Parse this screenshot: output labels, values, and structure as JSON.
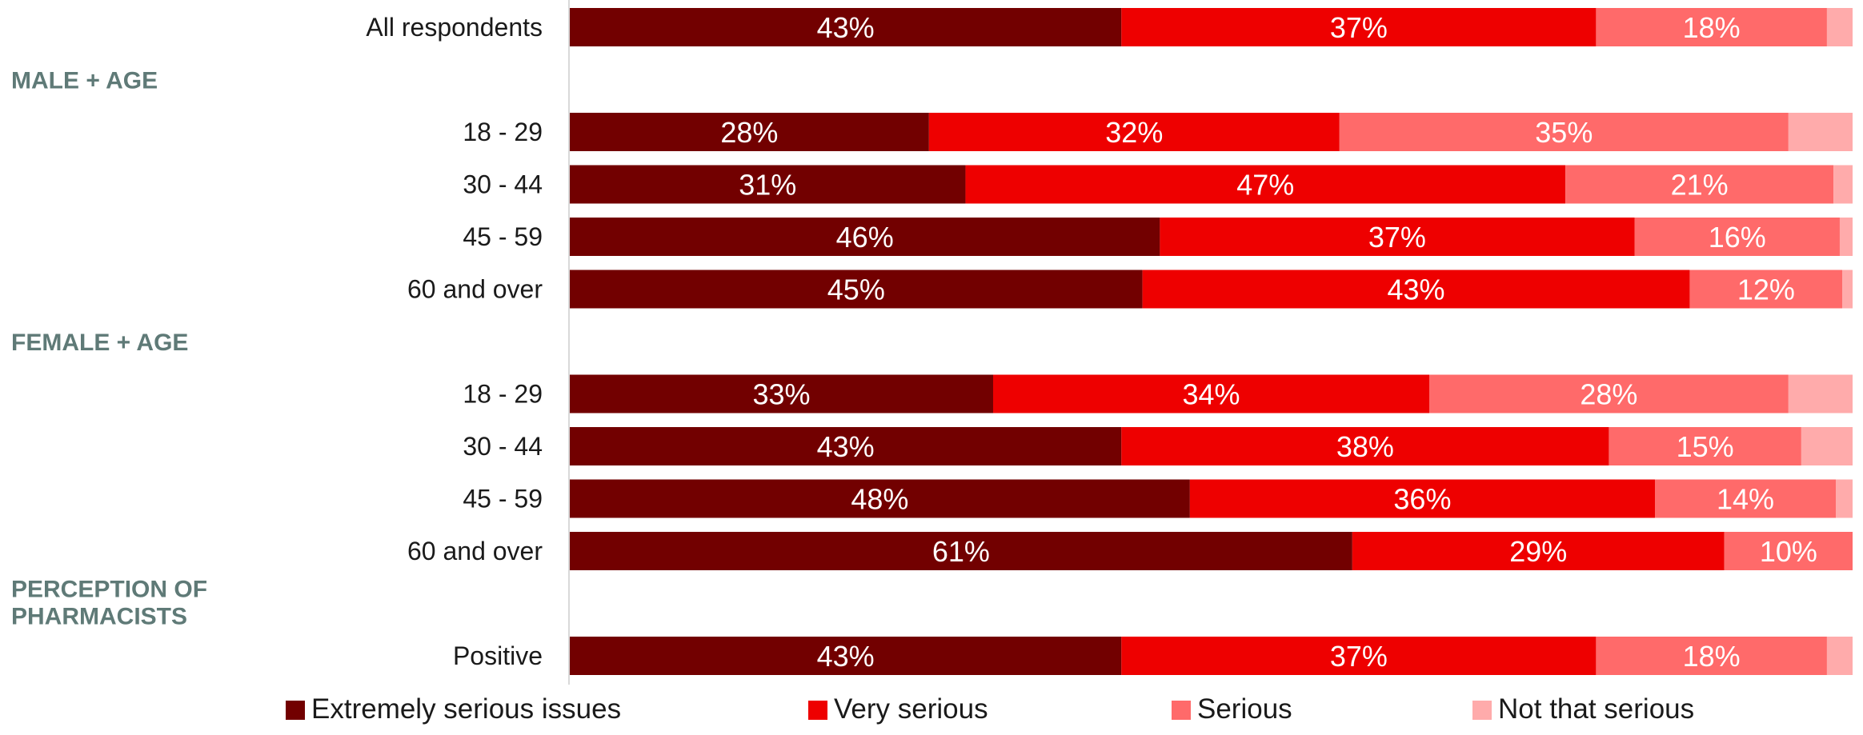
{
  "chart_data": {
    "type": "bar",
    "orientation": "horizontal",
    "stacked": true,
    "title": "",
    "xlabel": "",
    "ylabel": "",
    "xlim": [
      0,
      100
    ],
    "grid": false,
    "legend_position": "bottom",
    "series": [
      {
        "name": "Extremely serious issues",
        "color": "#720000"
      },
      {
        "name": "Very serious",
        "color": "#ee0000"
      },
      {
        "name": "Serious",
        "color": "#ff6a6a"
      },
      {
        "name": "Not that serious",
        "color": "#ffabab"
      }
    ],
    "rows": [
      {
        "label": "All respondents",
        "values": [
          43,
          37,
          18,
          2
        ],
        "labels": [
          "43%",
          "37%",
          "18%",
          ""
        ]
      },
      {
        "group": "MALE + AGE"
      },
      {
        "label": "18 - 29",
        "values": [
          28,
          32,
          35,
          5
        ],
        "labels": [
          "28%",
          "32%",
          "35%",
          ""
        ]
      },
      {
        "label": "30 - 44",
        "values": [
          31,
          47,
          21,
          1.5
        ],
        "labels": [
          "31%",
          "47%",
          "21%",
          ""
        ]
      },
      {
        "label": "45 - 59",
        "values": [
          46,
          37,
          16,
          1
        ],
        "labels": [
          "46%",
          "37%",
          "16%",
          ""
        ]
      },
      {
        "label": "60 and over",
        "values": [
          45,
          43,
          12,
          0.8
        ],
        "labels": [
          "45%",
          "43%",
          "12%",
          ""
        ]
      },
      {
        "group": "FEMALE + AGE"
      },
      {
        "label": "18 - 29",
        "values": [
          33,
          34,
          28,
          5
        ],
        "labels": [
          "33%",
          "34%",
          "28%",
          ""
        ]
      },
      {
        "label": "30 - 44",
        "values": [
          43,
          38,
          15,
          4
        ],
        "labels": [
          "43%",
          "38%",
          "15%",
          ""
        ]
      },
      {
        "label": "45 - 59",
        "values": [
          48,
          36,
          14,
          1.3
        ],
        "labels": [
          "48%",
          "36%",
          "14%",
          ""
        ]
      },
      {
        "label": "60 and over",
        "values": [
          61,
          29,
          10,
          0
        ],
        "labels": [
          "61%",
          "29%",
          "10%",
          ""
        ]
      },
      {
        "group": "PERCEPTION OF PHARMACISTS",
        "group_lines": [
          "PERCEPTION OF",
          "PHARMACISTS"
        ]
      },
      {
        "label": "Positive",
        "values": [
          43,
          37,
          18,
          2
        ],
        "labels": [
          "43%",
          "37%",
          "18%",
          ""
        ]
      }
    ]
  }
}
